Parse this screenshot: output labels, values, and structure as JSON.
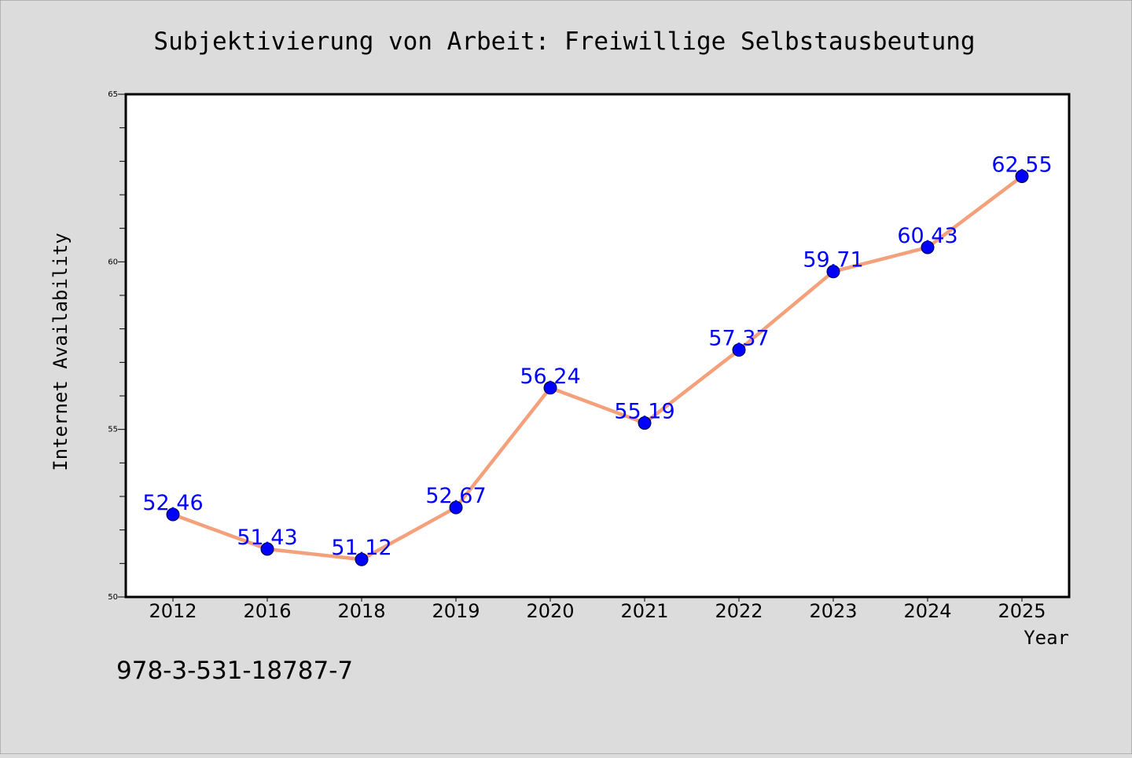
{
  "chart_data": {
    "type": "line",
    "title": "Subjektivierung von Arbeit: Freiwillige Selbstausbeutung",
    "xlabel": "Year",
    "ylabel": "Internet Availability",
    "categories": [
      "2012",
      "2016",
      "2018",
      "2019",
      "2020",
      "2021",
      "2022",
      "2023",
      "2024",
      "2025"
    ],
    "series": [
      {
        "values": [
          52.46,
          51.43,
          51.12,
          52.67,
          56.24,
          55.19,
          57.37,
          59.71,
          60.43,
          62.55
        ],
        "labels": [
          "52.46",
          "51.43",
          "51.12",
          "52.67",
          "56.24",
          "55.19",
          "57.37",
          "59.71",
          "60.43",
          "62.55"
        ],
        "line_color": "#f4a07a",
        "marker_color": "#0000ff"
      }
    ],
    "ylim": [
      50,
      65
    ],
    "yticks": [
      "50",
      "55",
      "60",
      "65"
    ],
    "grid": false,
    "label_color": "#0000ff",
    "background_color": "#dcdcdc",
    "plot_background_color": "#ffffff"
  },
  "footnote": "978-3-531-18787-7"
}
